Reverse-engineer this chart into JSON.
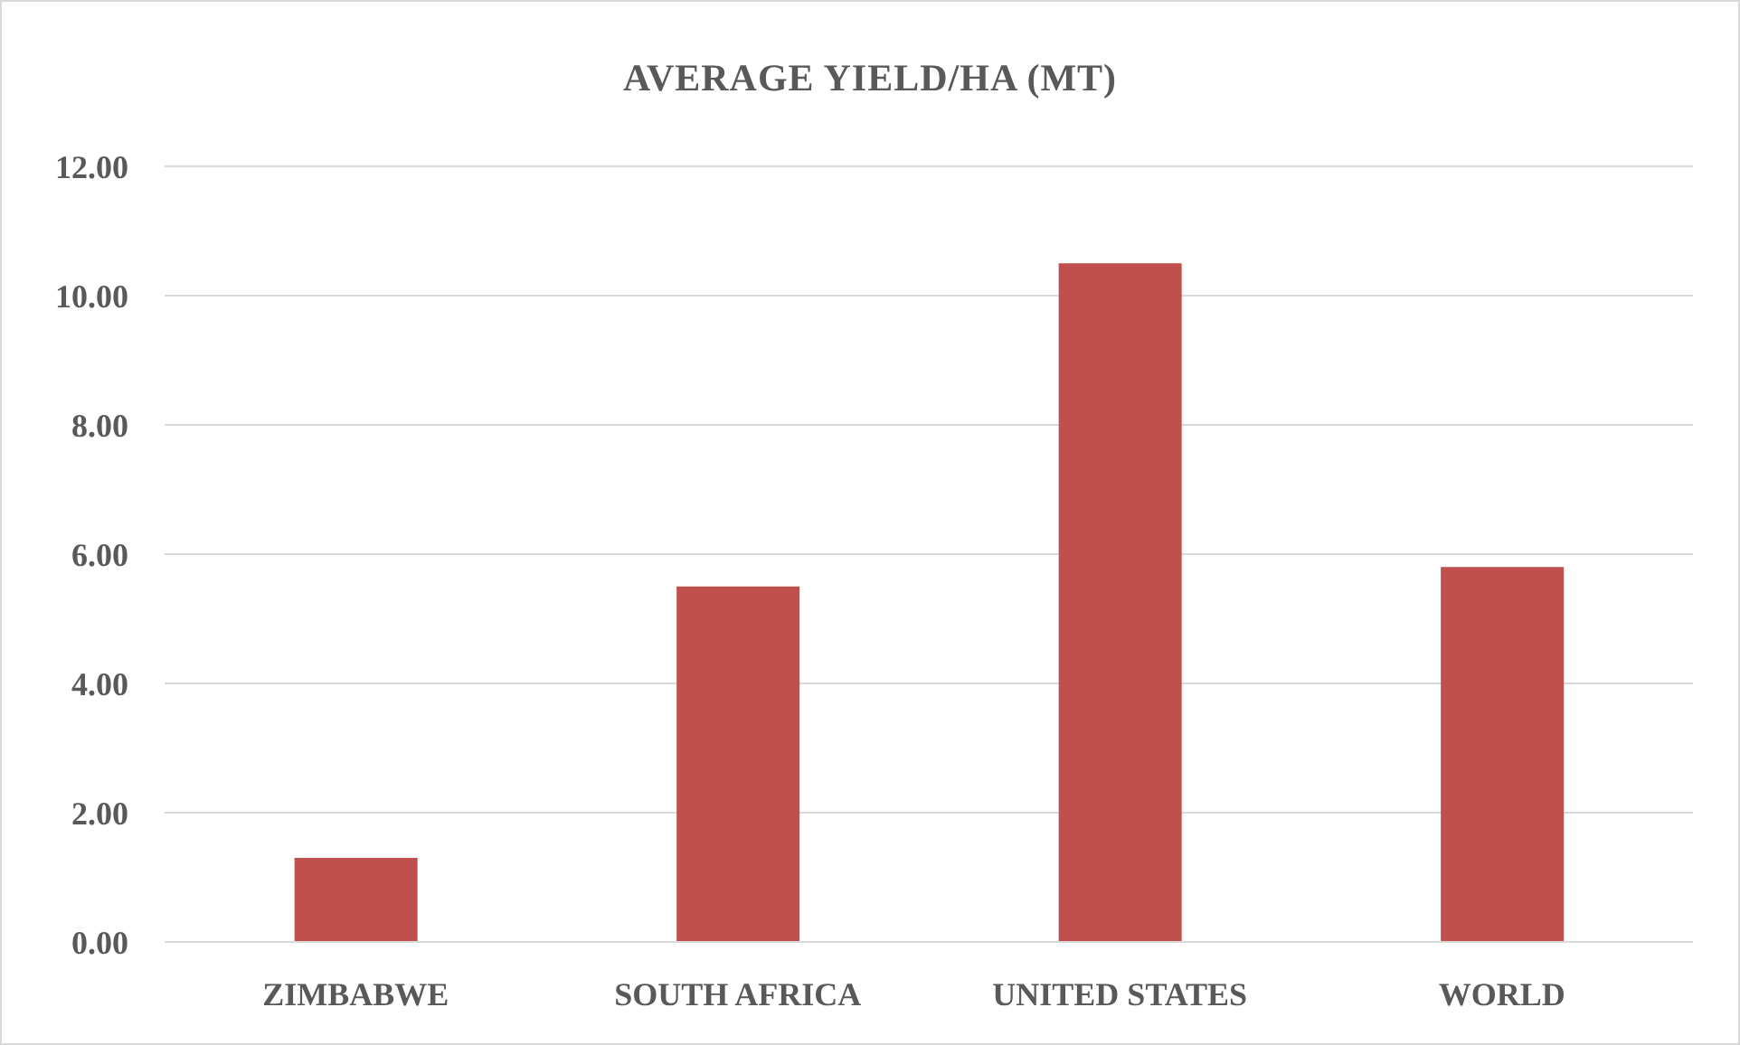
{
  "chart_data": {
    "type": "bar",
    "title": "AVERAGE YIELD/HA (MT)",
    "categories": [
      "ZIMBABWE",
      "SOUTH AFRICA",
      "UNITED STATES",
      "WORLD"
    ],
    "values": [
      1.3,
      5.5,
      10.5,
      5.8
    ],
    "color": "#c0504d",
    "ylim": [
      0,
      12
    ],
    "yticks": [
      {
        "value": 0,
        "label": "0.00"
      },
      {
        "value": 2,
        "label": "2.00"
      },
      {
        "value": 4,
        "label": "4.00"
      },
      {
        "value": 6,
        "label": "6.00"
      },
      {
        "value": 8,
        "label": "8.00"
      },
      {
        "value": 10,
        "label": "10.00"
      },
      {
        "value": 12,
        "label": "12.00"
      }
    ],
    "grid": "y",
    "legend": false
  }
}
